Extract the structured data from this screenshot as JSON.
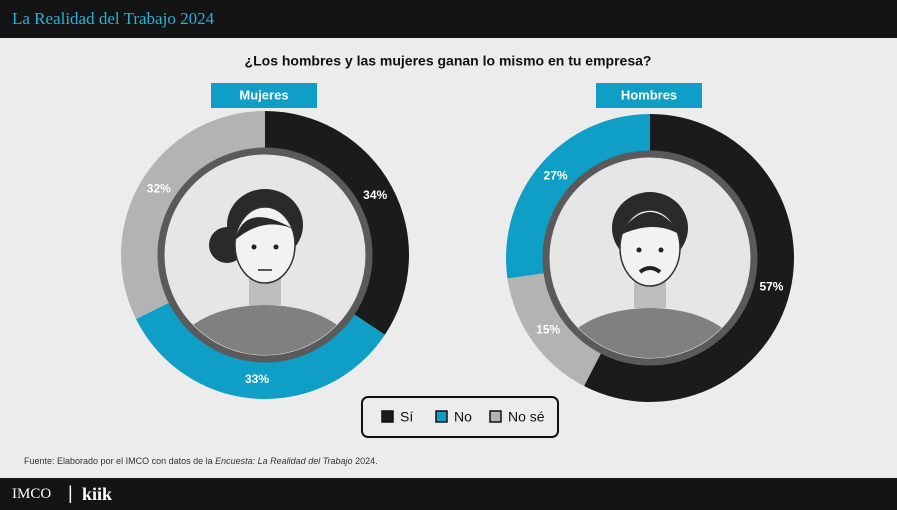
{
  "header": {
    "title": "La Realidad del Trabajo 2024"
  },
  "question": "¿Los hombres y las mujeres ganan lo mismo en tu empresa?",
  "chart_data": [
    {
      "type": "pie",
      "title": "Mujeres",
      "categories": [
        "Sí",
        "No",
        "No sé"
      ],
      "values": [
        34,
        33,
        32
      ],
      "value_labels": [
        "34%",
        "33%",
        "32%"
      ],
      "colors": [
        "#1b1b1b",
        "#0f9fc6",
        "#b3b3b3"
      ]
    },
    {
      "type": "pie",
      "title": "Hombres",
      "categories": [
        "Sí",
        "No sé",
        "No"
      ],
      "values": [
        57,
        15,
        27
      ],
      "value_labels": [
        "57%",
        "15%",
        "27%"
      ],
      "colors": [
        "#1b1b1b",
        "#b3b3b3",
        "#0f9fc6"
      ]
    }
  ],
  "source": [
    "Fuente: Elaborado por el IMCO con datos de la",
    "Encuesta: La Realidad del Trabajo",
    "2024."
  ],
  "footer": {
    "logos": [
      "IMCO",
      "kiik"
    ]
  }
}
